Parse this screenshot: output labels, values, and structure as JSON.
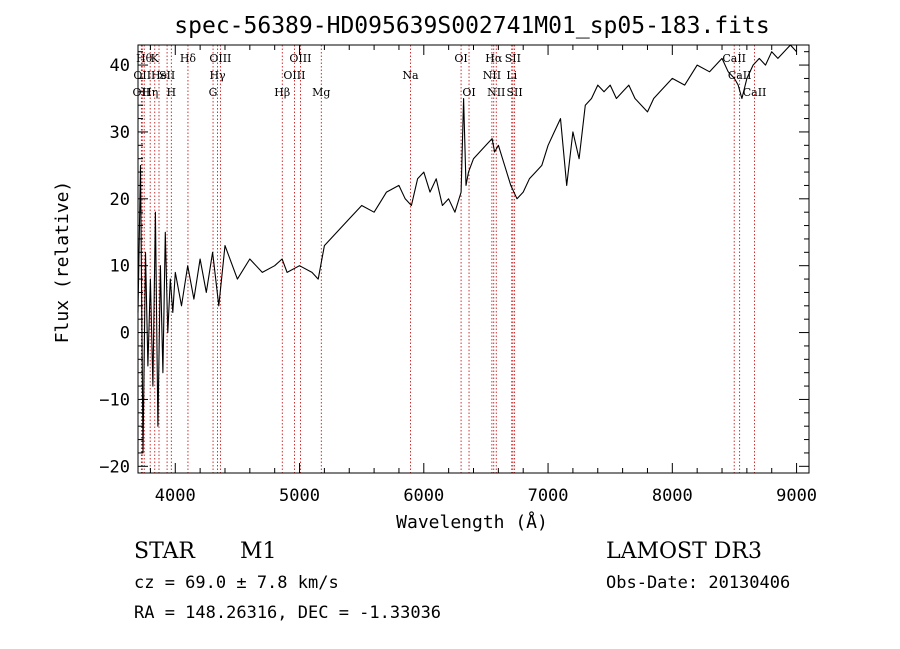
{
  "chart_data": {
    "type": "line",
    "title": "spec-56389-HD095639S002741M01_sp05-183.fits",
    "xlabel": "Wavelength (Å)",
    "ylabel": "Flux (relative)",
    "xlim": [
      3700,
      9100
    ],
    "ylim": [
      -21,
      43
    ],
    "xticks": [
      4000,
      5000,
      6000,
      7000,
      8000,
      9000
    ],
    "yticks": [
      -20,
      -10,
      0,
      10,
      20,
      30,
      40
    ],
    "grid": false,
    "line_color": "#000000",
    "marker_color": "#c00000",
    "series": [
      {
        "x": [
          3700,
          3720,
          3740,
          3760,
          3780,
          3800,
          3820,
          3840,
          3860,
          3880,
          3900,
          3920,
          3940,
          3960,
          3980,
          4000,
          4050,
          4100,
          4150,
          4200,
          4250,
          4300,
          4350,
          4400,
          4500,
          4600,
          4700,
          4800,
          4860,
          4900,
          5000,
          5100,
          5150,
          5200,
          5300,
          5400,
          5500,
          5600,
          5700,
          5800,
          5850,
          5900,
          5950,
          6000,
          6050,
          6100,
          6150,
          6200,
          6250,
          6300,
          6320,
          6340,
          6360,
          6400,
          6450,
          6500,
          6550,
          6570,
          6600,
          6650,
          6700,
          6750,
          6800,
          6850,
          6900,
          6950,
          7000,
          7050,
          7100,
          7150,
          7200,
          7250,
          7300,
          7350,
          7400,
          7450,
          7500,
          7550,
          7600,
          7650,
          7700,
          7750,
          7800,
          7850,
          7900,
          8000,
          8100,
          8200,
          8300,
          8400,
          8450,
          8500,
          8530,
          8560,
          8600,
          8650,
          8700,
          8750,
          8800,
          8850,
          8900,
          8950,
          9000
        ],
        "values": [
          3,
          25,
          -18,
          12,
          -5,
          8,
          -8,
          18,
          -14,
          10,
          -6,
          15,
          0,
          8,
          3,
          9,
          4,
          10,
          5,
          11,
          6,
          12,
          4,
          13,
          8,
          11,
          9,
          10,
          11,
          9,
          10,
          9,
          8,
          13,
          15,
          17,
          19,
          18,
          21,
          22,
          20,
          19,
          23,
          24,
          21,
          23,
          19,
          20,
          18,
          21,
          35,
          22,
          24,
          26,
          27,
          28,
          29,
          27,
          28,
          25,
          22,
          20,
          21,
          23,
          24,
          25,
          28,
          30,
          32,
          22,
          30,
          26,
          34,
          35,
          37,
          36,
          37,
          35,
          36,
          37,
          35,
          34,
          33,
          35,
          36,
          38,
          37,
          40,
          39,
          41,
          39,
          38,
          37,
          35,
          38,
          40,
          41,
          40,
          42,
          41,
          42,
          43,
          42
        ]
      }
    ],
    "line_labels": [
      {
        "wl": 3727,
        "row": 2,
        "text": "OII"
      },
      {
        "wl": 3734,
        "row": 1,
        "text": "OII"
      },
      {
        "wl": 3750,
        "row": 0,
        "text": "Hθ"
      },
      {
        "wl": 3798,
        "row": 2,
        "text": "Hη"
      },
      {
        "wl": 3835,
        "row": 0,
        "text": "K"
      },
      {
        "wl": 3869,
        "row": 1,
        "text": "He"
      },
      {
        "wl": 3934,
        "row": 1,
        "text": "SII"
      },
      {
        "wl": 3968,
        "row": 2,
        "text": "H"
      },
      {
        "wl": 4102,
        "row": 0,
        "text": "Hδ"
      },
      {
        "wl": 4304,
        "row": 2,
        "text": "G"
      },
      {
        "wl": 4340,
        "row": 1,
        "text": "Hγ"
      },
      {
        "wl": 4363,
        "row": 0,
        "text": "OIII"
      },
      {
        "wl": 4861,
        "row": 2,
        "text": "Hβ"
      },
      {
        "wl": 4959,
        "row": 1,
        "text": "OIII"
      },
      {
        "wl": 5007,
        "row": 0,
        "text": "OIII"
      },
      {
        "wl": 5175,
        "row": 2,
        "text": "Mg"
      },
      {
        "wl": 5893,
        "row": 1,
        "text": "Na"
      },
      {
        "wl": 6300,
        "row": 0,
        "text": "OI"
      },
      {
        "wl": 6364,
        "row": 2,
        "text": "OI"
      },
      {
        "wl": 6548,
        "row": 1,
        "text": "NII"
      },
      {
        "wl": 6563,
        "row": 0,
        "text": "Hα"
      },
      {
        "wl": 6583,
        "row": 2,
        "text": "NII"
      },
      {
        "wl": 6708,
        "row": 1,
        "text": "Li"
      },
      {
        "wl": 6717,
        "row": 0,
        "text": "SII"
      },
      {
        "wl": 6731,
        "row": 2,
        "text": "SII"
      },
      {
        "wl": 8498,
        "row": 0,
        "text": "CaII"
      },
      {
        "wl": 8542,
        "row": 1,
        "text": "CaII"
      },
      {
        "wl": 8662,
        "row": 2,
        "text": "CaII"
      }
    ]
  },
  "info": {
    "class": "STAR",
    "subclass": "M1",
    "survey": "LAMOST DR3",
    "cz": "cz = 69.0 ± 7.8 km/s",
    "obs_date": "Obs-Date: 20130406",
    "coords": "RA = 148.26316, DEC =  -1.33036"
  }
}
